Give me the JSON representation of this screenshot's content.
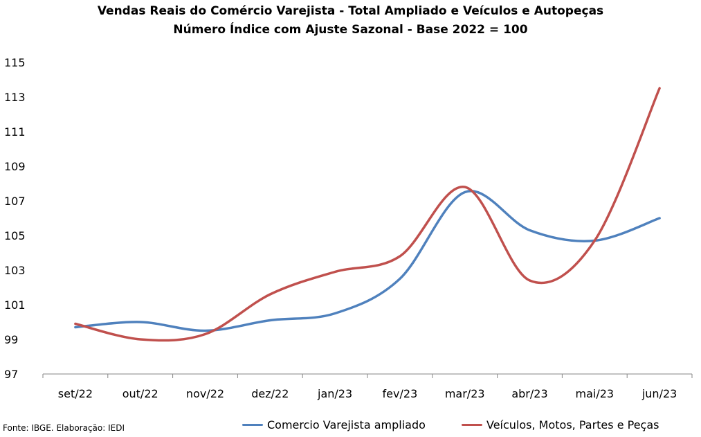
{
  "chart_data": {
    "type": "line",
    "title": "Vendas Reais do Comércio Varejista - Total Ampliado e Veículos e Autopeças",
    "subtitle": "Número Índice com Ajuste Sazonal - Base 2022 = 100",
    "categories": [
      "set/22",
      "out/22",
      "nov/22",
      "dez/22",
      "jan/23",
      "fev/23",
      "mar/23",
      "abr/23",
      "mai/23",
      "jun/23"
    ],
    "series": [
      {
        "name": "Comercio Varejista ampliado",
        "color": "#4F81BD",
        "values": [
          99.7,
          100.0,
          99.5,
          100.1,
          100.5,
          102.5,
          107.5,
          105.3,
          104.7,
          106.0
        ]
      },
      {
        "name": "Veículos, Motos, Partes e Peças",
        "color": "#C0504D",
        "values": [
          99.9,
          99.0,
          99.3,
          101.6,
          102.9,
          103.8,
          107.8,
          102.4,
          104.7,
          113.5
        ]
      }
    ],
    "y_ticks": [
      "97",
      "99",
      "101",
      "103",
      "105",
      "107",
      "109",
      "111",
      "113",
      "115"
    ],
    "ylim": [
      97,
      115
    ],
    "xlabel": "",
    "ylabel": "",
    "grid": false,
    "legend_position": "bottom"
  },
  "footer": {
    "source": "Fonte: IBGE. Elaboração: IEDI"
  }
}
